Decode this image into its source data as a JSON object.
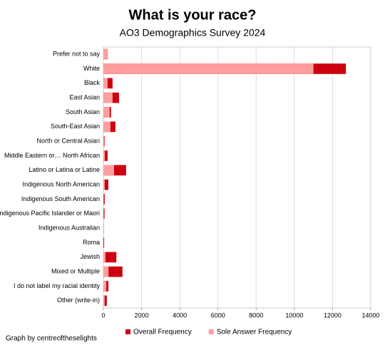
{
  "chart_data": {
    "type": "bar",
    "orientation": "horizontal",
    "barmode": "overlay",
    "title": "What is your race?",
    "subtitle": "AO3 Demographics Survey 2024",
    "caption": "Graph by centreoftheselights",
    "categories": [
      "Prefer not to say",
      "White",
      "Black",
      "East Asian",
      "South Asian",
      "South-East Asian",
      "North or Central Asian",
      "Middle Eastern or… North African",
      "Latino or Latina or Latine",
      "Indigenous North American",
      "Indigenous South American",
      "Indigenous Pacific Islander or Maori",
      "Indigenous Australian",
      "Roma",
      "Jewish",
      "Mixed or Multiple",
      "I do not label my racial identity",
      "Other (write-in)"
    ],
    "series": [
      {
        "name": "Overall Frequency",
        "color": "#cc0011",
        "values": [
          230,
          12700,
          480,
          820,
          400,
          630,
          60,
          220,
          1190,
          260,
          70,
          60,
          10,
          40,
          680,
          1000,
          260,
          180
        ]
      },
      {
        "name": "Sole Answer Frequency",
        "color": "#ff9e9e",
        "values": [
          230,
          11000,
          220,
          480,
          330,
          370,
          30,
          80,
          560,
          70,
          20,
          20,
          2,
          10,
          110,
          270,
          150,
          70
        ]
      }
    ],
    "xlim": [
      0,
      14000
    ],
    "xticks": [
      0,
      2000,
      4000,
      6000,
      8000,
      10000,
      12000,
      14000
    ],
    "grid": true
  }
}
